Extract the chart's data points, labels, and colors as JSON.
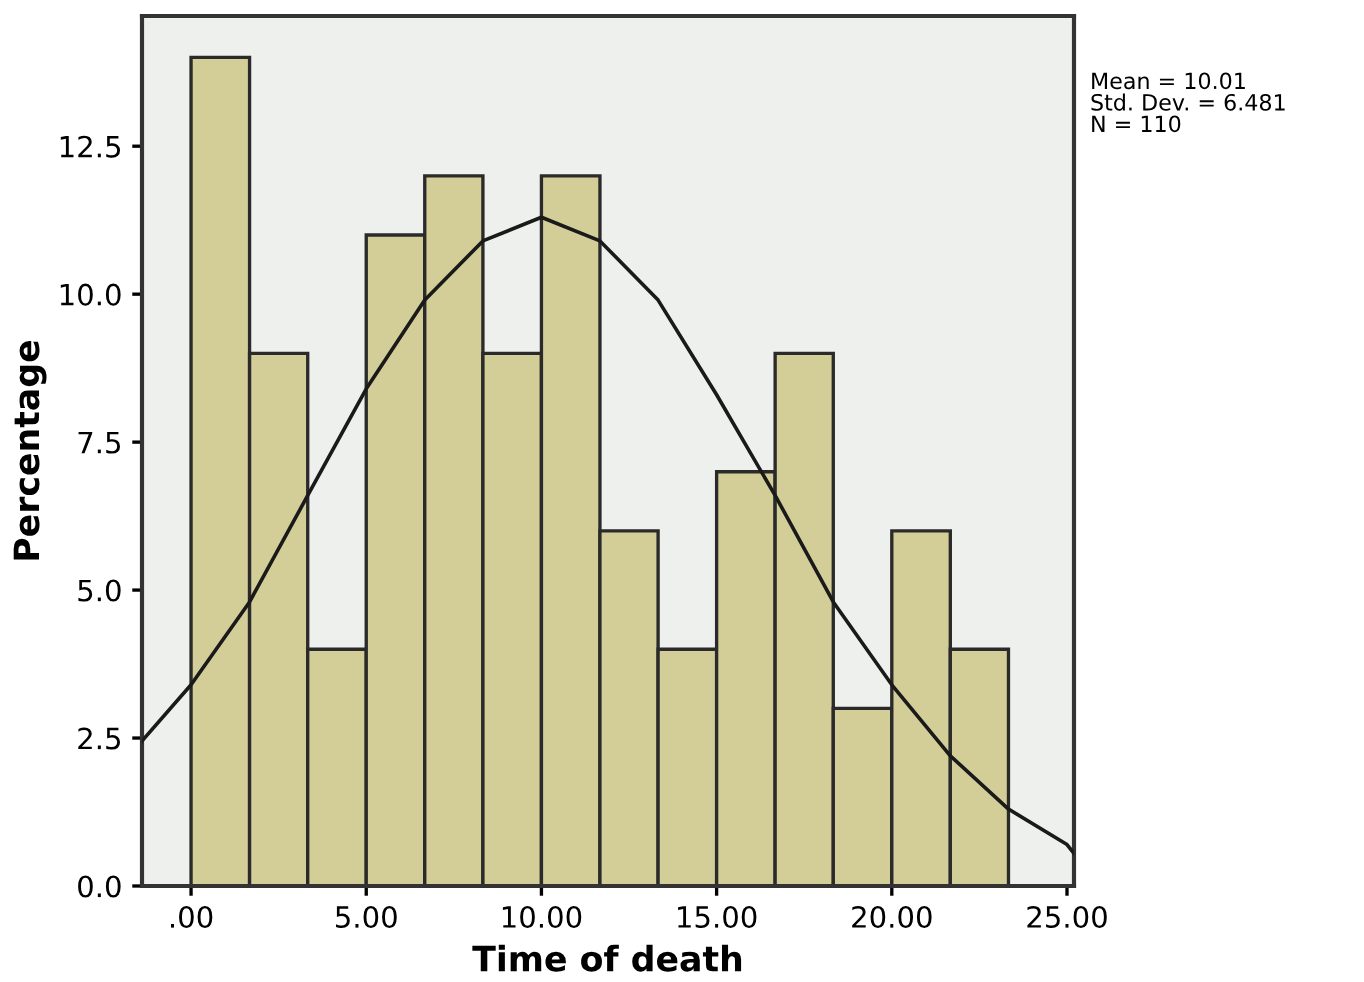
{
  "chart_data": {
    "type": "histogram",
    "xlabel": "Time of death",
    "ylabel": "Percentage",
    "bins": [
      0,
      1.67,
      3.33,
      5,
      6.67,
      8.33,
      10,
      11.67,
      13.33,
      15,
      16.67,
      18.33,
      20,
      21.67,
      23.33
    ],
    "values": [
      14,
      9,
      4,
      11,
      12,
      9,
      12,
      6,
      4,
      7,
      9,
      3,
      6,
      4
    ],
    "color": "#d3cd98",
    "series": [
      {
        "type": "line",
        "color": "#1a1a1a",
        "x": [
          -1.4,
          0,
          1.67,
          3.33,
          5,
          6.67,
          8.33,
          10,
          11.67,
          13.33,
          15,
          16.67,
          18.33,
          20,
          21.67,
          23.33,
          25,
          25.2
        ],
        "values": [
          2.45,
          3.4,
          4.8,
          6.6,
          8.4,
          9.9,
          10.9,
          11.3,
          10.9,
          9.9,
          8.3,
          6.6,
          4.8,
          3.4,
          2.2,
          1.3,
          0.7,
          0.55
        ]
      }
    ],
    "xlim": [
      -1.4,
      25.2
    ],
    "xticks": [
      {
        "value": 0,
        "label": ".00"
      },
      {
        "value": 5,
        "label": "5.00"
      },
      {
        "value": 10,
        "label": "10.00"
      },
      {
        "value": 15,
        "label": "15.00"
      },
      {
        "value": 20,
        "label": "20.00"
      },
      {
        "value": 25,
        "label": "25.00"
      }
    ],
    "ylim": [
      0,
      14.7
    ],
    "yticks": [
      {
        "value": 0,
        "label": "0.0"
      },
      {
        "value": 2.5,
        "label": "2.5"
      },
      {
        "value": 5,
        "label": "5.0"
      },
      {
        "value": 7.5,
        "label": "7.5"
      },
      {
        "value": 10,
        "label": "10.0"
      },
      {
        "value": 12.5,
        "label": "12.5"
      }
    ],
    "annotations": [
      "Mean = 10.01\nStd. Dev. = 6.481\nN = 110"
    ],
    "grid": false,
    "legend": false
  }
}
